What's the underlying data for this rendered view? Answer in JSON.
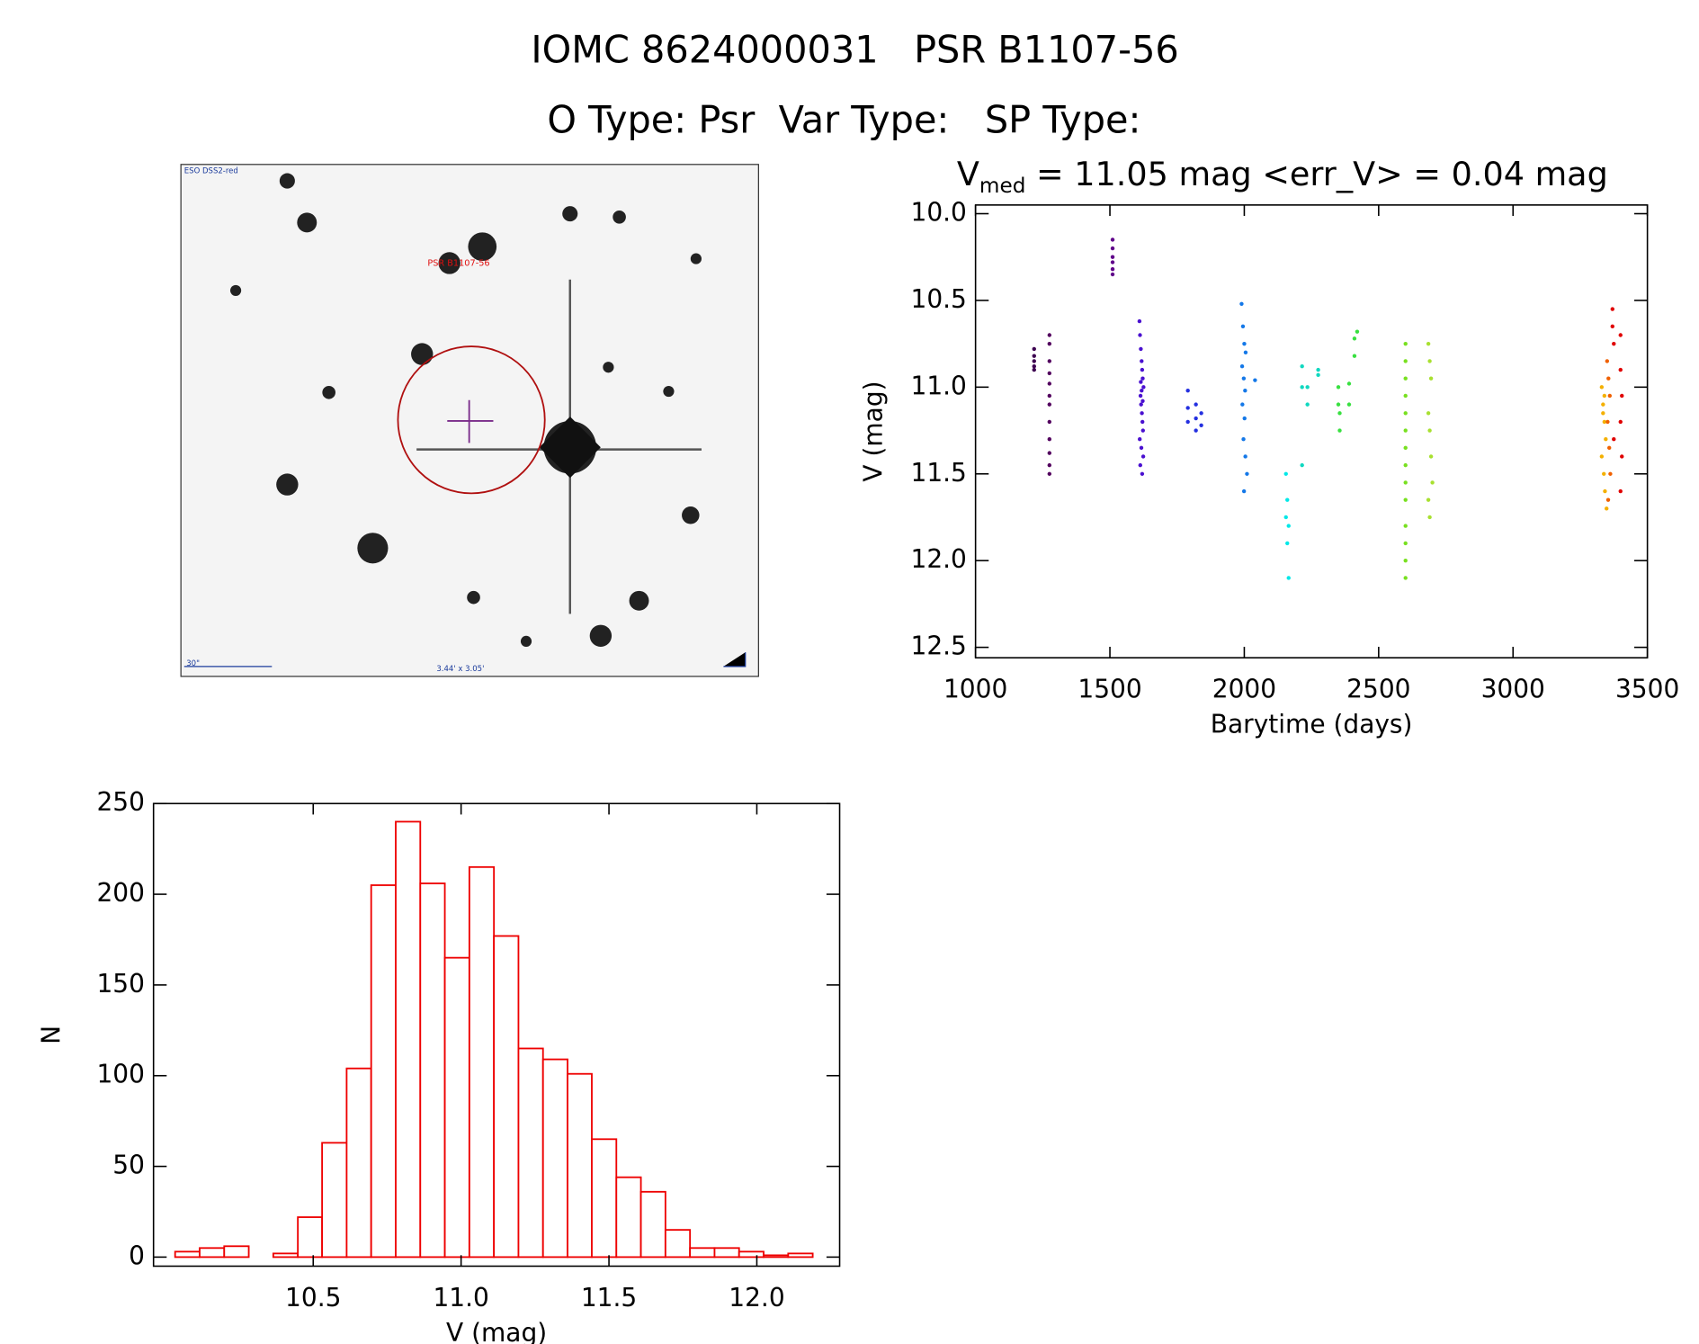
{
  "header": {
    "title": "IOMC 8624000031   PSR B1107-56",
    "subtitle": "O Type: Psr  Var Type:   SP Type:"
  },
  "image": {
    "survey": "ESO DSS2-red",
    "target": "PSR B1107-56",
    "scale": "30\"",
    "size": "3.44' x 3.05'"
  },
  "chart_data": [
    {
      "type": "scatter",
      "title": {
        "main": "V",
        "sub": "med",
        "rest": " = 11.05 mag <err_V> = 0.04 mag"
      },
      "x_label": "Barytime (days)",
      "y_label": "V (mag)",
      "xlim": [
        1000,
        3500
      ],
      "ylim": [
        9.95,
        12.56
      ],
      "y_inverted": true,
      "xticks": [
        1000,
        1500,
        2000,
        2500,
        3000,
        3500
      ],
      "yticks": [
        {
          "value": 10,
          "label": "10.0"
        },
        10.5,
        {
          "value": 11,
          "label": "11.0"
        },
        11.5,
        {
          "value": 12,
          "label": "12.0"
        },
        12.5
      ],
      "series": [
        {
          "color": "#3c0050",
          "x": [
            1218,
            1218,
            1218,
            1218,
            1218
          ],
          "y": [
            10.78,
            10.82,
            10.85,
            10.88,
            10.9
          ]
        },
        {
          "color": "#52005e",
          "x": [
            1275,
            1275,
            1275,
            1275,
            1275,
            1275,
            1275,
            1275,
            1275,
            1275,
            1275,
            1275
          ],
          "y": [
            10.7,
            10.75,
            10.85,
            10.92,
            10.98,
            11.05,
            11.1,
            11.2,
            11.3,
            11.38,
            11.45,
            11.5
          ]
        },
        {
          "color": "#60008a",
          "x": [
            1510,
            1510,
            1510,
            1510,
            1510,
            1510
          ],
          "y": [
            10.15,
            10.2,
            10.25,
            10.28,
            10.32,
            10.35
          ]
        },
        {
          "color": "#4a10d0",
          "x": [
            1610,
            1612,
            1615,
            1618,
            1620,
            1622,
            1625,
            1614,
            1616,
            1619,
            1621,
            1623,
            1611,
            1617,
            1624,
            1613,
            1620,
            1618,
            1615,
            1622
          ],
          "y": [
            10.62,
            10.7,
            10.78,
            10.85,
            10.9,
            10.95,
            11.0,
            11.05,
            11.1,
            11.15,
            11.2,
            11.25,
            11.3,
            11.35,
            11.4,
            11.45,
            11.5,
            11.02,
            10.97,
            11.08
          ]
        },
        {
          "color": "#2430e0",
          "x": [
            1790,
            1790,
            1820,
            1820,
            1840,
            1840,
            1790,
            1820
          ],
          "y": [
            11.02,
            11.2,
            11.1,
            11.25,
            11.15,
            11.22,
            11.12,
            11.18
          ]
        },
        {
          "color": "#1478e8",
          "x": [
            1990,
            1995,
            2000,
            2005,
            1992,
            1998,
            2003,
            1993,
            2001,
            1997,
            2004,
            2010,
            1999,
            2040
          ],
          "y": [
            10.52,
            10.65,
            10.75,
            10.8,
            10.88,
            10.95,
            11.02,
            11.1,
            11.18,
            11.3,
            11.4,
            11.5,
            11.6,
            10.96
          ]
        },
        {
          "color": "#00e8e8",
          "x": [
            2155,
            2160,
            2165,
            2160,
            2165,
            2155
          ],
          "y": [
            11.5,
            11.65,
            11.8,
            11.9,
            12.1,
            11.75
          ]
        },
        {
          "color": "#10d8c0",
          "x": [
            2215,
            2215,
            2215,
            2235,
            2235,
            2275,
            2275
          ],
          "y": [
            10.88,
            11.0,
            11.45,
            11.0,
            11.1,
            10.9,
            10.93
          ]
        },
        {
          "color": "#38e040",
          "x": [
            2350,
            2350,
            2355,
            2355,
            2390,
            2390,
            2410,
            2410,
            2420
          ],
          "y": [
            11.0,
            11.1,
            11.15,
            11.25,
            10.98,
            11.1,
            10.72,
            10.82,
            10.68
          ]
        },
        {
          "color": "#78e020",
          "x": [
            2600,
            2600,
            2600,
            2600,
            2600,
            2600,
            2600,
            2600,
            2600,
            2600,
            2600,
            2600,
            2600,
            2600
          ],
          "y": [
            10.75,
            10.85,
            10.95,
            11.05,
            11.15,
            11.25,
            11.35,
            11.45,
            11.55,
            11.65,
            11.8,
            11.9,
            12.0,
            12.1
          ]
        },
        {
          "color": "#a8e030",
          "x": [
            2685,
            2690,
            2695,
            2685,
            2690,
            2695,
            2700,
            2685,
            2690
          ],
          "y": [
            10.75,
            10.85,
            10.95,
            11.15,
            11.25,
            11.4,
            11.55,
            11.65,
            11.75
          ]
        },
        {
          "color": "#f4b000",
          "x": [
            3330,
            3335,
            3340,
            3345,
            3330,
            3338,
            3342,
            3348,
            3335,
            3340
          ],
          "y": [
            11.0,
            11.1,
            11.2,
            11.3,
            11.4,
            11.5,
            11.6,
            11.7,
            11.15,
            11.05
          ]
        },
        {
          "color": "#f06000",
          "x": [
            3350,
            3355,
            3360,
            3352,
            3358,
            3362,
            3354
          ],
          "y": [
            10.85,
            10.95,
            11.05,
            11.2,
            11.35,
            11.5,
            11.65
          ]
        },
        {
          "color": "#e00000",
          "x": [
            3370,
            3370,
            3375,
            3400,
            3400,
            3405,
            3400,
            3405,
            3375,
            3400
          ],
          "y": [
            10.55,
            10.65,
            10.75,
            10.7,
            10.9,
            11.05,
            11.2,
            11.4,
            11.3,
            11.6
          ]
        }
      ]
    },
    {
      "type": "histogram",
      "x_label": "V (mag)",
      "y_label": "N",
      "color": "#ee0000",
      "xlim": [
        9.96,
        12.28
      ],
      "ylim": [
        -5,
        250
      ],
      "xticks": [
        10.5,
        {
          "value": 11,
          "label": "11.0"
        },
        11.5,
        {
          "value": 12,
          "label": "12.0"
        }
      ],
      "yticks": [
        0,
        50,
        100,
        150,
        200,
        250
      ],
      "bins": [
        10.033,
        10.116,
        10.199,
        10.282,
        10.365,
        10.448,
        10.53,
        10.613,
        10.696,
        10.779,
        10.862,
        10.945,
        11.028,
        11.111,
        11.194,
        11.277,
        11.36,
        11.442,
        11.525,
        11.608,
        11.691,
        11.774,
        11.857,
        11.94,
        12.023,
        12.106,
        12.189
      ],
      "values": [
        3,
        5,
        6,
        0,
        2,
        22,
        63,
        104,
        205,
        240,
        206,
        165,
        215,
        177,
        115,
        109,
        101,
        65,
        44,
        36,
        15,
        5,
        5,
        3,
        1,
        2
      ]
    }
  ]
}
